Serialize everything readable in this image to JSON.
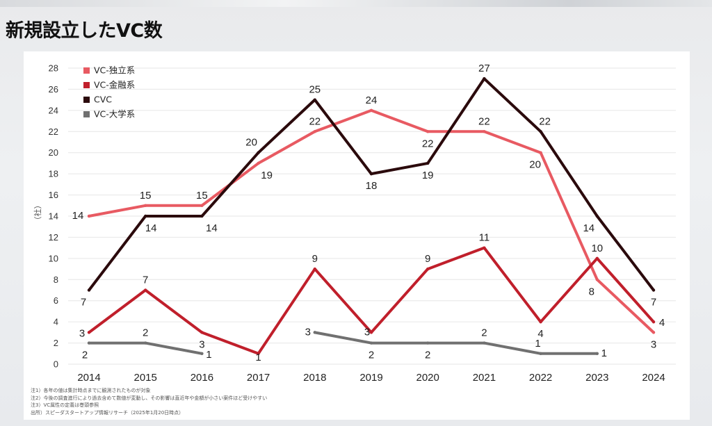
{
  "page_title": "新規設立したVC数",
  "notes": [
    "注1）各年の値は集計時点までに観測されたものが対象",
    "注2）今後の調査進行により過去含めて数値が変動し、その影響は直近年や金額が小さい案件ほど受けやすい",
    "注3）VC属性の定義は巻頭参照",
    "出所）スピーダスタートアップ情報リサーチ（2025年1月20日時点）"
  ],
  "chart_data": {
    "type": "line",
    "title": "",
    "xlabel": "",
    "ylabel": "（社）",
    "x": [
      "2014",
      "2015",
      "2016",
      "2017",
      "2018",
      "2019",
      "2020",
      "2021",
      "2022",
      "2023",
      "2024"
    ],
    "ylim": [
      0,
      28
    ],
    "yticks": [
      0,
      2,
      4,
      6,
      8,
      10,
      12,
      14,
      16,
      18,
      20,
      22,
      24,
      26,
      28
    ],
    "grid": true,
    "legend_position": "top-left",
    "series": [
      {
        "name": "VC-独立系",
        "color": "#e85a62",
        "values": [
          14,
          15,
          15,
          19,
          22,
          24,
          22,
          22,
          20,
          8,
          3
        ]
      },
      {
        "name": "VC-金融系",
        "color": "#c01f2b",
        "values": [
          3,
          7,
          3,
          1,
          9,
          3,
          9,
          11,
          4,
          10,
          4
        ]
      },
      {
        "name": "CVC",
        "color": "#2b0a0c",
        "values": [
          7,
          14,
          14,
          20,
          25,
          18,
          19,
          27,
          22,
          14,
          7
        ]
      },
      {
        "name": "VC-大学系",
        "color": "#707070",
        "values": [
          2,
          2,
          1,
          null,
          3,
          2,
          2,
          2,
          1,
          1,
          null
        ]
      }
    ]
  }
}
